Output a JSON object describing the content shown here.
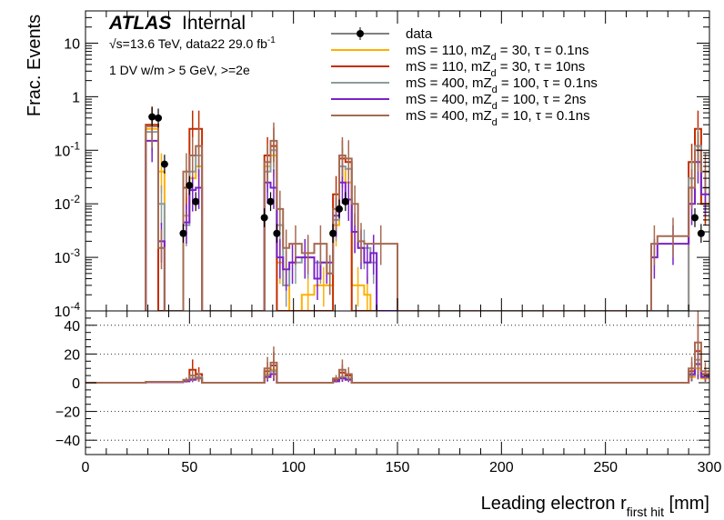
{
  "chart_data": {
    "type": "histogram-with-ratio",
    "xlabel": "Leading electron r",
    "xlabel_sub": "first hit",
    "xlabel_unit": " [mm]",
    "ylabel": "Frac. Events",
    "x_range": [
      0,
      300
    ],
    "x_ticks": [
      0,
      50,
      100,
      150,
      200,
      250,
      300
    ],
    "top_panel": {
      "yscale": "log",
      "y_range": [
        0.0001,
        40
      ],
      "y_tick_labels": [
        {
          "v": 10,
          "t": "10"
        },
        {
          "v": 1,
          "t": "1"
        },
        {
          "v": 0.1,
          "b": "10",
          "e": "-1"
        },
        {
          "v": 0.01,
          "b": "10",
          "e": "-2"
        },
        {
          "v": 0.001,
          "b": "10",
          "e": "-3"
        },
        {
          "v": 0.0001,
          "b": "10",
          "e": "-4"
        }
      ]
    },
    "ratio_panel": {
      "y_range": [
        -50,
        50
      ],
      "y_ticks": [
        40,
        20,
        0,
        -20,
        -40
      ],
      "gridlines": [
        40,
        20,
        -20,
        -40
      ]
    },
    "annotations": {
      "experiment": "ATLAS",
      "status": "Internal",
      "energy": "√s=13.6 TeV, data22 29.0 fb",
      "lumi_exp": "-1",
      "selection": "1 DV w/m > 5 GeV, >=2e"
    },
    "legend": [
      {
        "type": "marker",
        "color": "#000000",
        "pre": "data",
        "sub": "",
        "post": ""
      },
      {
        "type": "line",
        "color": "#ffb000",
        "pre": "mS = 110, mZ",
        "sub": "d",
        "post": " = 30, τ = 0.1ns"
      },
      {
        "type": "line",
        "color": "#c42d00",
        "pre": "mS = 110, mZ",
        "sub": "d",
        "post": " = 30, τ = 10ns"
      },
      {
        "type": "line",
        "color": "#8c9ca0",
        "pre": "mS = 400, mZ",
        "sub": "d",
        "post": " = 100, τ = 0.1ns"
      },
      {
        "type": "line",
        "color": "#7a22c8",
        "pre": "mS = 400, mZ",
        "sub": "d",
        "post": " = 100, τ = 2ns"
      },
      {
        "type": "line",
        "color": "#a66a52",
        "pre": "mS = 400, mZ",
        "sub": "d",
        "post": " = 10, τ = 0.1ns"
      }
    ],
    "data_points": [
      {
        "x": 32,
        "y": 0.42
      },
      {
        "x": 35,
        "y": 0.4
      },
      {
        "x": 38,
        "y": 0.055
      },
      {
        "x": 47,
        "y": 0.0028
      },
      {
        "x": 50,
        "y": 0.022
      },
      {
        "x": 53,
        "y": 0.011
      },
      {
        "x": 86,
        "y": 0.0055
      },
      {
        "x": 89,
        "y": 0.011
      },
      {
        "x": 92,
        "y": 0.0028
      },
      {
        "x": 119,
        "y": 0.0028
      },
      {
        "x": 122,
        "y": 0.008
      },
      {
        "x": 125,
        "y": 0.011
      },
      {
        "x": 293,
        "y": 0.0055
      },
      {
        "x": 296,
        "y": 0.0028
      }
    ],
    "series": [
      {
        "color": "#ffb000",
        "bins": [
          [
            29,
            35,
            0.25
          ],
          [
            35,
            38,
            0.04
          ],
          [
            38,
            47,
            0.0001
          ],
          [
            47,
            50,
            0.006
          ],
          [
            50,
            53,
            0.03
          ],
          [
            53,
            56,
            0.05
          ],
          [
            56,
            86,
            0.0001
          ],
          [
            86,
            89,
            0.05
          ],
          [
            89,
            92,
            0.08
          ],
          [
            92,
            95,
            0.0008
          ],
          [
            95,
            98,
            0.0003
          ],
          [
            98,
            104,
            0.0001
          ],
          [
            104,
            110,
            0.0002
          ],
          [
            110,
            119,
            0.0003
          ],
          [
            119,
            122,
            0.004
          ],
          [
            122,
            125,
            0.05
          ],
          [
            125,
            128,
            0.025
          ],
          [
            128,
            134,
            0.0003
          ],
          [
            134,
            137,
            0.0002
          ],
          [
            137,
            140,
            0.0001
          ],
          [
            140,
            290,
            0.0001
          ],
          [
            290,
            293,
            0.03
          ],
          [
            293,
            296,
            0.12
          ],
          [
            296,
            300,
            0.01
          ]
        ]
      },
      {
        "color": "#c42d00",
        "bins": [
          [
            29,
            35,
            0.3
          ],
          [
            35,
            38,
            0.0001
          ],
          [
            38,
            47,
            0.0001
          ],
          [
            47,
            50,
            0.02
          ],
          [
            50,
            53,
            0.25
          ],
          [
            53,
            56,
            0.25
          ],
          [
            56,
            86,
            0.0001
          ],
          [
            86,
            89,
            0.08
          ],
          [
            89,
            92,
            0.12
          ],
          [
            92,
            119,
            0.0001
          ],
          [
            119,
            122,
            0.015
          ],
          [
            122,
            125,
            0.07
          ],
          [
            125,
            128,
            0.06
          ],
          [
            128,
            290,
            0.0001
          ],
          [
            290,
            293,
            0.06
          ],
          [
            293,
            296,
            0.25
          ],
          [
            296,
            300,
            0.01
          ]
        ]
      },
      {
        "color": "#8c9ca0",
        "bins": [
          [
            29,
            35,
            0.22
          ],
          [
            35,
            38,
            0.01
          ],
          [
            38,
            47,
            0.0001
          ],
          [
            47,
            50,
            0.004
          ],
          [
            50,
            53,
            0.04
          ],
          [
            53,
            56,
            0.08
          ],
          [
            56,
            86,
            0.0001
          ],
          [
            86,
            89,
            0.04
          ],
          [
            89,
            92,
            0.1
          ],
          [
            92,
            95,
            0.004
          ],
          [
            95,
            98,
            0.0003
          ],
          [
            98,
            104,
            0.0008
          ],
          [
            104,
            110,
            0.001
          ],
          [
            110,
            116,
            0.0008
          ],
          [
            116,
            119,
            0.0005
          ],
          [
            119,
            122,
            0.005
          ],
          [
            122,
            125,
            0.05
          ],
          [
            125,
            128,
            0.045
          ],
          [
            128,
            131,
            0.003
          ],
          [
            131,
            137,
            0.0015
          ],
          [
            137,
            140,
            0.0008
          ],
          [
            140,
            290,
            0.0001
          ],
          [
            290,
            293,
            0.03
          ],
          [
            293,
            296,
            0.12
          ],
          [
            296,
            300,
            0.02
          ]
        ]
      },
      {
        "color": "#7a22c8",
        "bins": [
          [
            29,
            35,
            0.15
          ],
          [
            35,
            38,
            0.002
          ],
          [
            38,
            47,
            0.0001
          ],
          [
            47,
            50,
            0.0045
          ],
          [
            50,
            53,
            0.018
          ],
          [
            53,
            56,
            0.02
          ],
          [
            56,
            86,
            0.0001
          ],
          [
            86,
            89,
            0.025
          ],
          [
            89,
            92,
            0.02
          ],
          [
            92,
            95,
            0.001
          ],
          [
            95,
            98,
            0.0006
          ],
          [
            98,
            101,
            0.0008
          ],
          [
            101,
            110,
            0.001
          ],
          [
            110,
            113,
            0.0004
          ],
          [
            113,
            119,
            0.0008
          ],
          [
            119,
            122,
            0.006
          ],
          [
            122,
            125,
            0.025
          ],
          [
            125,
            128,
            0.012
          ],
          [
            128,
            131,
            0.003
          ],
          [
            131,
            134,
            0.0015
          ],
          [
            134,
            137,
            0.0008
          ],
          [
            137,
            140,
            0.0012
          ],
          [
            140,
            272,
            0.0001
          ],
          [
            272,
            275,
            0.001
          ],
          [
            275,
            290,
            0.0018
          ],
          [
            290,
            293,
            0.01
          ],
          [
            293,
            296,
            0.06
          ],
          [
            296,
            300,
            0.015
          ]
        ]
      },
      {
        "color": "#a66a52",
        "bins": [
          [
            29,
            35,
            0.28
          ],
          [
            35,
            38,
            0.0015
          ],
          [
            38,
            47,
            0.0001
          ],
          [
            47,
            50,
            0.04
          ],
          [
            50,
            53,
            0.08
          ],
          [
            53,
            56,
            0.12
          ],
          [
            56,
            86,
            0.0001
          ],
          [
            86,
            89,
            0.06
          ],
          [
            89,
            92,
            0.15
          ],
          [
            92,
            95,
            0.008
          ],
          [
            95,
            98,
            0.0015
          ],
          [
            98,
            104,
            0.0018
          ],
          [
            104,
            110,
            0.0012
          ],
          [
            110,
            116,
            0.0018
          ],
          [
            116,
            119,
            0.0005
          ],
          [
            119,
            122,
            0.008
          ],
          [
            122,
            125,
            0.08
          ],
          [
            125,
            128,
            0.07
          ],
          [
            128,
            131,
            0.01
          ],
          [
            131,
            134,
            0.002
          ],
          [
            134,
            150,
            0.0018
          ],
          [
            150,
            272,
            0.0001
          ],
          [
            272,
            275,
            0.0018
          ],
          [
            275,
            290,
            0.0025
          ],
          [
            290,
            293,
            0.02
          ],
          [
            293,
            296,
            0.1
          ],
          [
            296,
            300,
            0.04
          ]
        ]
      }
    ],
    "ratio_series": [
      {
        "color": "#ffb000",
        "bins": [
          [
            0,
            29,
            0
          ],
          [
            29,
            47,
            0.6
          ],
          [
            47,
            50,
            1.5
          ],
          [
            50,
            53,
            2.5
          ],
          [
            53,
            56,
            3.5
          ],
          [
            56,
            86,
            0
          ],
          [
            86,
            89,
            6
          ],
          [
            89,
            92,
            9
          ],
          [
            92,
            119,
            0
          ],
          [
            119,
            122,
            1.5
          ],
          [
            122,
            125,
            4
          ],
          [
            125,
            128,
            3
          ],
          [
            128,
            290,
            0
          ],
          [
            290,
            293,
            4
          ],
          [
            293,
            296,
            10
          ],
          [
            296,
            300,
            3
          ]
        ]
      },
      {
        "color": "#c42d00",
        "bins": [
          [
            0,
            29,
            0
          ],
          [
            29,
            47,
            0.5
          ],
          [
            47,
            50,
            1
          ],
          [
            50,
            53,
            9
          ],
          [
            53,
            56,
            6
          ],
          [
            56,
            86,
            0
          ],
          [
            86,
            89,
            8
          ],
          [
            89,
            92,
            12
          ],
          [
            92,
            119,
            0
          ],
          [
            119,
            122,
            2
          ],
          [
            122,
            125,
            7
          ],
          [
            125,
            128,
            5
          ],
          [
            128,
            290,
            0
          ],
          [
            290,
            293,
            8
          ],
          [
            293,
            296,
            22
          ],
          [
            296,
            300,
            6
          ]
        ]
      },
      {
        "color": "#8c9ca0",
        "bins": [
          [
            0,
            29,
            0
          ],
          [
            29,
            47,
            0.5
          ],
          [
            47,
            50,
            1.5
          ],
          [
            50,
            53,
            3
          ],
          [
            53,
            56,
            4
          ],
          [
            56,
            86,
            0
          ],
          [
            86,
            89,
            5
          ],
          [
            89,
            92,
            8
          ],
          [
            92,
            119,
            0
          ],
          [
            119,
            122,
            1
          ],
          [
            122,
            125,
            4
          ],
          [
            125,
            128,
            3
          ],
          [
            128,
            290,
            0
          ],
          [
            290,
            293,
            5
          ],
          [
            293,
            296,
            16
          ],
          [
            296,
            300,
            5
          ]
        ]
      },
      {
        "color": "#7a22c8",
        "bins": [
          [
            0,
            29,
            0
          ],
          [
            29,
            47,
            0.4
          ],
          [
            47,
            50,
            1
          ],
          [
            50,
            53,
            2
          ],
          [
            53,
            56,
            3
          ],
          [
            56,
            86,
            0
          ],
          [
            86,
            89,
            4
          ],
          [
            89,
            92,
            6
          ],
          [
            92,
            119,
            0
          ],
          [
            119,
            122,
            1
          ],
          [
            122,
            125,
            3
          ],
          [
            125,
            128,
            2
          ],
          [
            128,
            290,
            0
          ],
          [
            290,
            293,
            6
          ],
          [
            293,
            296,
            13
          ],
          [
            296,
            300,
            4
          ]
        ]
      },
      {
        "color": "#a66a52",
        "bins": [
          [
            0,
            29,
            0
          ],
          [
            29,
            47,
            0.6
          ],
          [
            47,
            50,
            2
          ],
          [
            50,
            53,
            5
          ],
          [
            53,
            56,
            3
          ],
          [
            56,
            86,
            0
          ],
          [
            86,
            89,
            10
          ],
          [
            89,
            92,
            14
          ],
          [
            92,
            119,
            0
          ],
          [
            119,
            122,
            3
          ],
          [
            122,
            125,
            9
          ],
          [
            125,
            128,
            6
          ],
          [
            128,
            290,
            0
          ],
          [
            290,
            293,
            10
          ],
          [
            293,
            296,
            28
          ],
          [
            296,
            300,
            8
          ]
        ]
      }
    ]
  }
}
